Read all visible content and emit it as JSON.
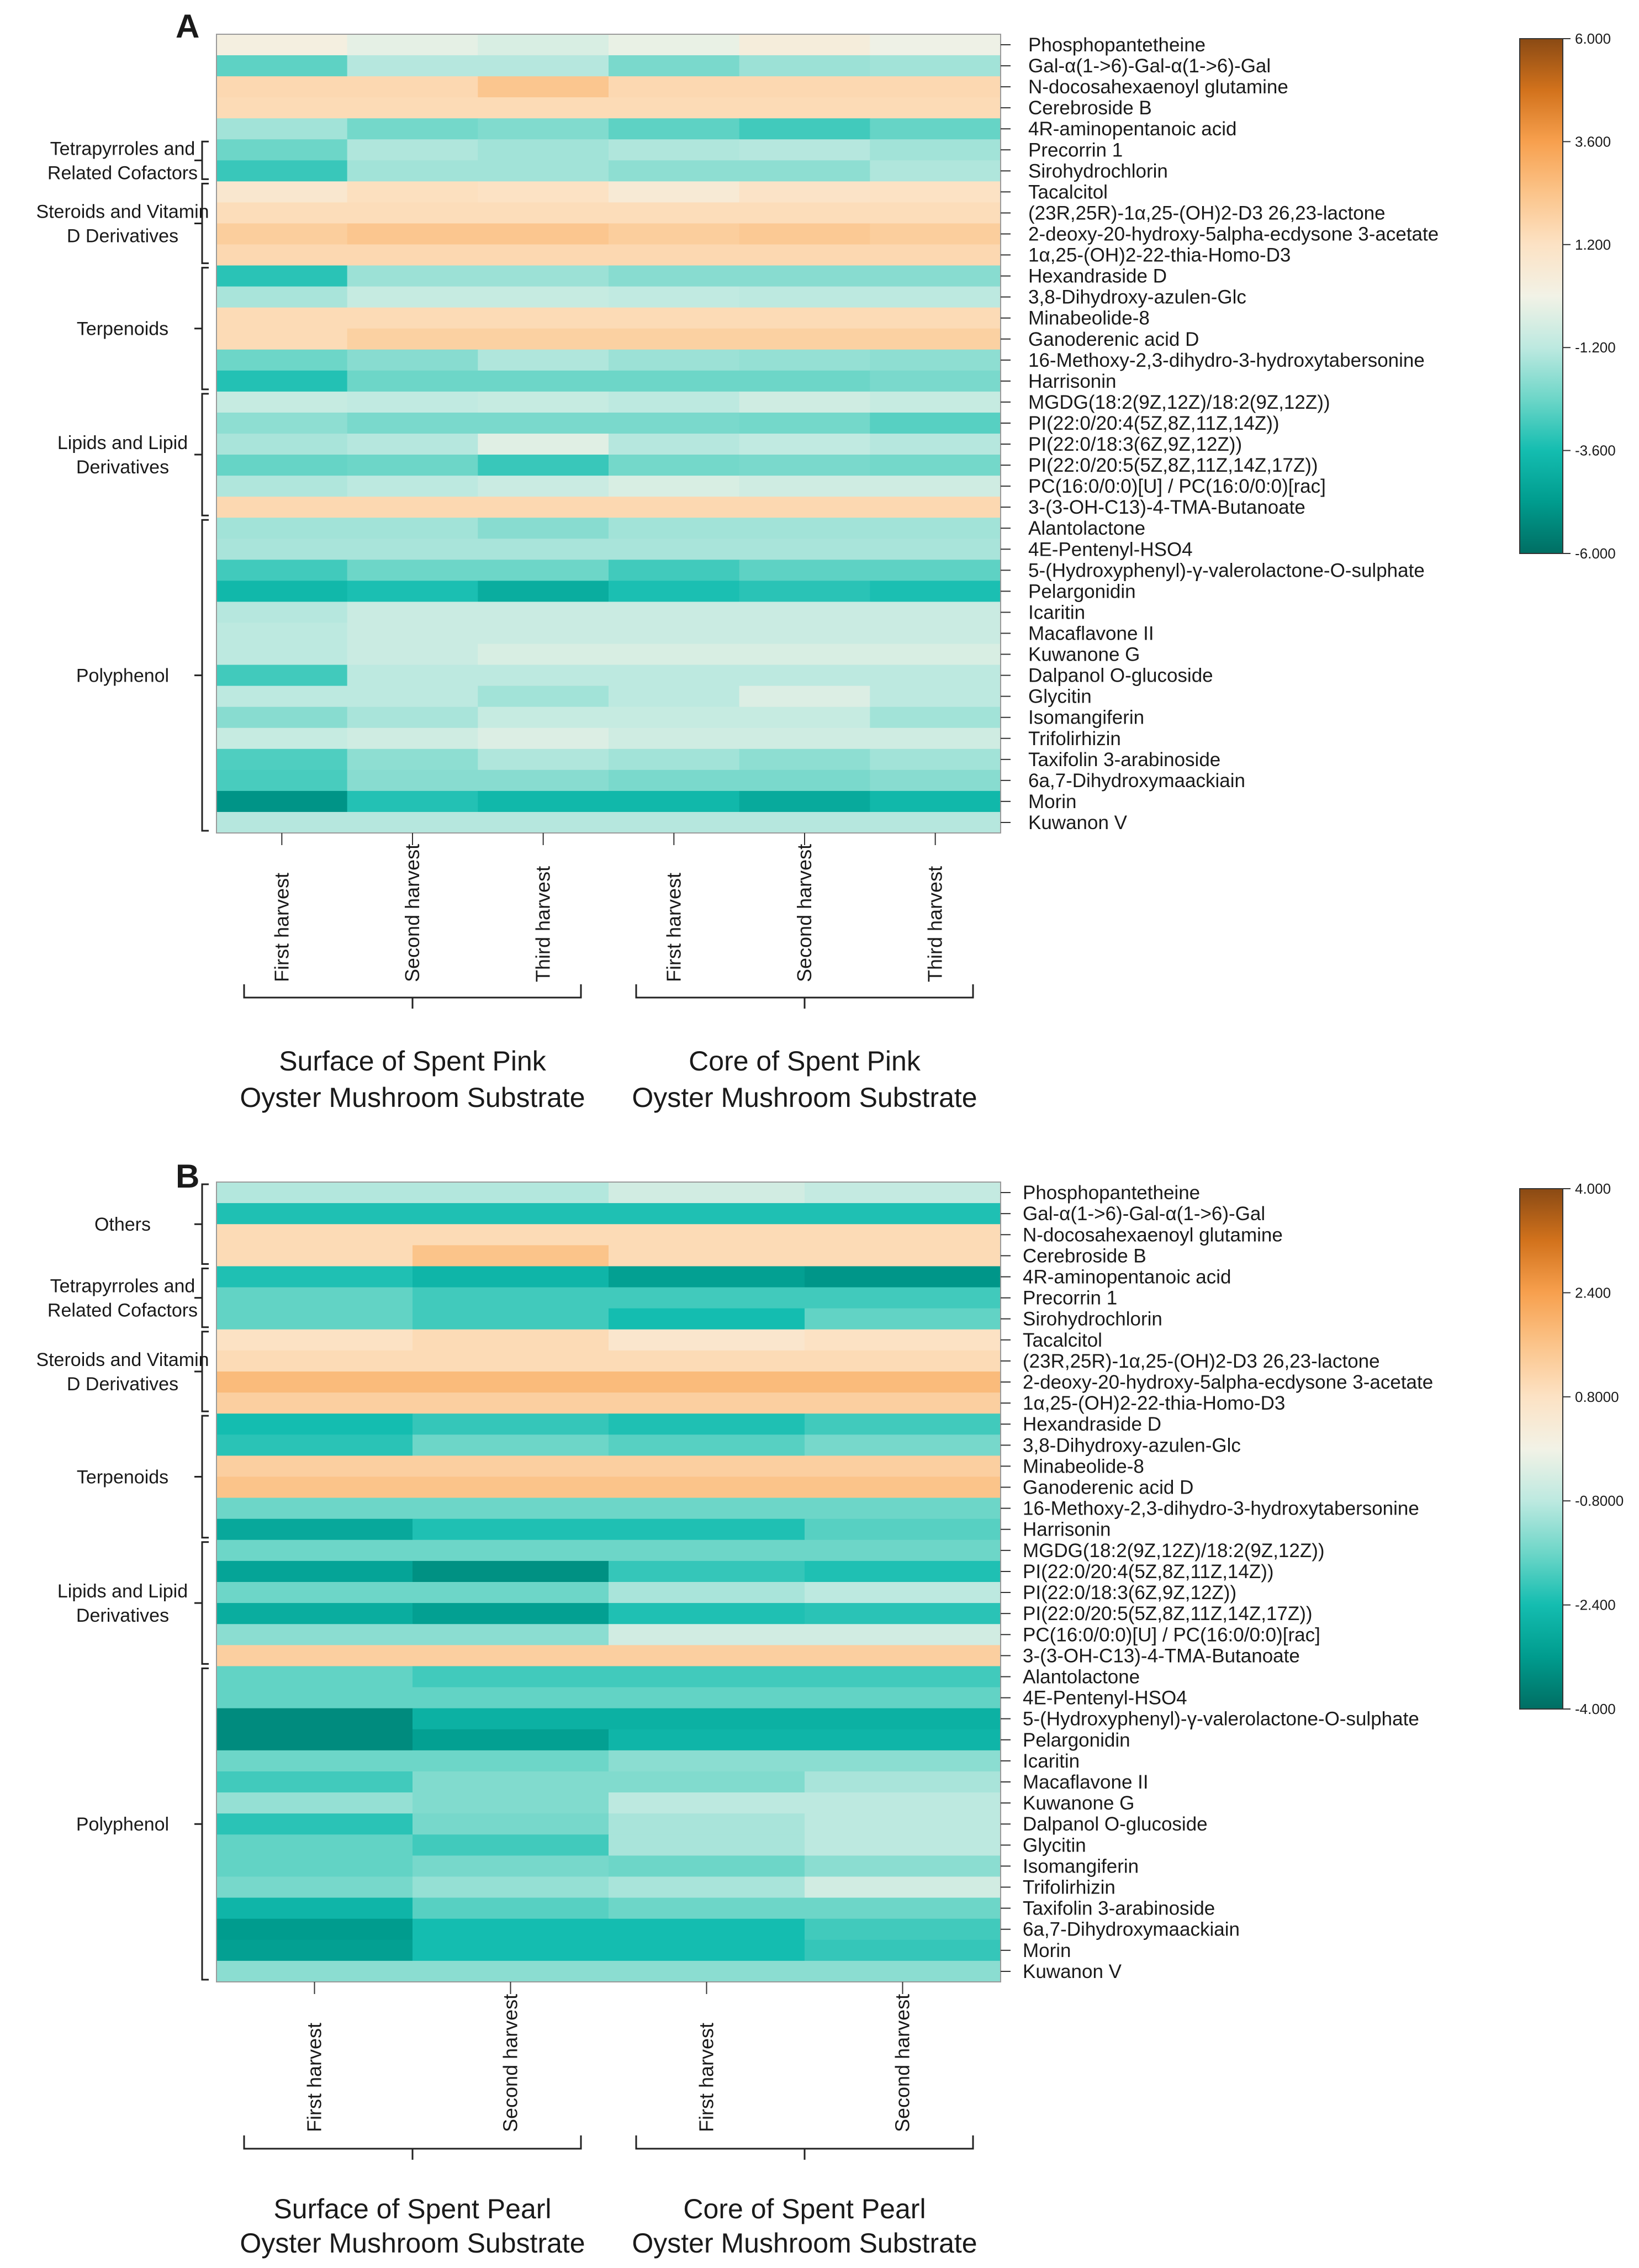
{
  "colors": {
    "scale_stops": [
      "#006e63",
      "#009c8e",
      "#14bdb0",
      "#6dd6c8",
      "#bde9e0",
      "#f2f2e6",
      "#fce2c4",
      "#fbc48a",
      "#f7a04e",
      "#d2721c",
      "#8a4a14"
    ]
  },
  "chart_data": [
    {
      "type": "heatmap",
      "panel_label": "A",
      "rows": [
        "Phosphopantetheine",
        "Gal-α(1->6)-Gal-α(1->6)-Gal",
        "N-docosahexaenoyl glutamine",
        "Cerebroside B",
        "4R-aminopentanoic acid",
        "Precorrin 1",
        "Sirohydrochlorin",
        "Tacalcitol",
        "(23R,25R)-1α,25-(OH)2-D3 26,23-lactone",
        "2-deoxy-20-hydroxy-5alpha-ecdysone 3-acetate",
        "1α,25-(OH)2-22-thia-Homo-D3",
        "Hexandraside D",
        "3,8-Dihydroxy-azulen-Glc",
        "Minabeolide-8",
        "Ganoderenic acid D",
        "16-Methoxy-2,3-dihydro-3-hydroxytabersonine",
        "Harrisonin",
        "MGDG(18:2(9Z,12Z)/18:2(9Z,12Z))",
        "PI(22:0/20:4(5Z,8Z,11Z,14Z))",
        "PI(22:0/18:3(6Z,9Z,12Z))",
        "PI(22:0/20:5(5Z,8Z,11Z,14Z,17Z))",
        "PC(16:0/0:0)[U] / PC(16:0/0:0)[rac]",
        "3-(3-OH-C13)-4-TMA-Butanoate",
        "Alantolactone",
        "4E-Pentenyl-HSO4",
        "5-(Hydroxyphenyl)-γ-valerolactone-O-sulphate",
        "Pelargonidin",
        "Icaritin",
        "Macaflavone II",
        "Kuwanone G",
        "Dalpanol O-glucoside",
        "Glycitin",
        "Isomangiferin",
        "Trifolirhizin",
        "Taxifolin 3-arabinoside",
        "6a,7-Dihydroxymaackiain",
        "Morin",
        "Kuwanon V"
      ],
      "columns": [
        "First harvest",
        "Second harvest",
        "Third harvest",
        "First harvest",
        "Second harvest",
        "Third harvest"
      ],
      "column_groups": [
        {
          "label_line1": "Surface of Spent Pink",
          "label_line2": "Oyster Mushroom Substrate",
          "columns": [
            0,
            1,
            2
          ]
        },
        {
          "label_line1": "Core of Spent Pink",
          "label_line2": "Oyster Mushroom Substrate",
          "columns": [
            3,
            4,
            5
          ]
        }
      ],
      "row_groups": [
        {
          "label": [
            "Tetrapyrroles and",
            "Related Cofactors"
          ],
          "rows": [
            5,
            6
          ]
        },
        {
          "label": [
            "Steroids and Vitamin",
            "D Derivatives"
          ],
          "rows": [
            7,
            10
          ]
        },
        {
          "label": [
            "Terpenoids"
          ],
          "rows": [
            11,
            16
          ]
        },
        {
          "label": [
            "Lipids and Lipid",
            "Derivatives"
          ],
          "rows": [
            17,
            22
          ]
        },
        {
          "label": [
            "Polyphenol"
          ],
          "rows": [
            23,
            37
          ]
        }
      ],
      "values": [
        [
          0.2,
          -0.3,
          -0.6,
          -0.2,
          0.4,
          -0.1
        ],
        [
          -2.6,
          -1.3,
          -1.3,
          -2.2,
          -1.7,
          -1.6
        ],
        [
          1.6,
          1.6,
          2.3,
          1.6,
          1.6,
          1.6
        ],
        [
          1.5,
          1.5,
          1.5,
          1.5,
          1.5,
          1.5
        ],
        [
          -1.6,
          -2.3,
          -2.1,
          -2.6,
          -3.0,
          -2.5
        ],
        [
          -2.4,
          -1.4,
          -1.6,
          -1.4,
          -1.3,
          -1.6
        ],
        [
          -3.1,
          -1.6,
          -1.6,
          -1.9,
          -1.9,
          -1.4
        ],
        [
          0.8,
          1.3,
          1.2,
          0.6,
          1.1,
          1.2
        ],
        [
          1.4,
          1.4,
          1.4,
          1.4,
          1.4,
          1.4
        ],
        [
          2.0,
          2.3,
          2.3,
          2.0,
          2.2,
          2.0
        ],
        [
          1.6,
          1.6,
          1.6,
          1.6,
          1.6,
          1.6
        ],
        [
          -3.3,
          -1.7,
          -1.7,
          -2.0,
          -2.0,
          -2.0
        ],
        [
          -1.5,
          -1.0,
          -1.0,
          -1.1,
          -1.2,
          -1.2
        ],
        [
          1.5,
          1.5,
          1.5,
          1.5,
          1.5,
          1.5
        ],
        [
          1.5,
          1.9,
          1.9,
          1.9,
          1.9,
          1.9
        ],
        [
          -2.4,
          -2.0,
          -1.4,
          -1.7,
          -1.8,
          -1.9
        ],
        [
          -3.4,
          -2.4,
          -2.4,
          -2.4,
          -2.4,
          -2.2
        ],
        [
          -1.0,
          -1.1,
          -1.0,
          -1.2,
          -0.8,
          -1.0
        ],
        [
          -1.9,
          -2.2,
          -2.2,
          -2.2,
          -2.3,
          -2.7
        ],
        [
          -1.5,
          -1.3,
          -0.4,
          -1.3,
          -1.1,
          -1.3
        ],
        [
          -2.5,
          -2.4,
          -3.1,
          -2.3,
          -2.2,
          -2.3
        ],
        [
          -1.4,
          -1.2,
          -0.9,
          -0.6,
          -0.8,
          -0.8
        ],
        [
          1.6,
          1.6,
          1.6,
          1.6,
          1.6,
          1.6
        ],
        [
          -1.6,
          -1.6,
          -2.0,
          -1.6,
          -1.6,
          -1.6
        ],
        [
          -1.5,
          -1.5,
          -1.5,
          -1.5,
          -1.5,
          -1.5
        ],
        [
          -3.0,
          -2.4,
          -2.4,
          -3.0,
          -2.6,
          -2.6
        ],
        [
          -3.8,
          -3.5,
          -4.2,
          -3.5,
          -3.3,
          -3.5
        ],
        [
          -1.3,
          -0.9,
          -0.9,
          -0.9,
          -0.9,
          -0.9
        ],
        [
          -1.2,
          -0.9,
          -0.9,
          -0.9,
          -0.9,
          -0.9
        ],
        [
          -1.2,
          -0.9,
          -0.6,
          -0.6,
          -0.6,
          -0.6
        ],
        [
          -3.0,
          -1.2,
          -1.2,
          -1.2,
          -1.2,
          -1.2
        ],
        [
          -1.2,
          -1.2,
          -1.6,
          -1.2,
          -0.5,
          -1.2
        ],
        [
          -2.0,
          -1.5,
          -1.0,
          -1.0,
          -1.0,
          -1.6
        ],
        [
          -1.0,
          -0.8,
          -0.5,
          -0.8,
          -0.8,
          -0.8
        ],
        [
          -2.8,
          -1.9,
          -1.4,
          -1.6,
          -1.9,
          -1.6
        ],
        [
          -2.9,
          -2.0,
          -2.0,
          -2.2,
          -2.2,
          -2.0
        ],
        [
          -5.0,
          -3.4,
          -3.8,
          -3.8,
          -4.3,
          -3.8
        ],
        [
          -1.3,
          -1.3,
          -1.3,
          -1.3,
          -1.3,
          -1.3
        ]
      ],
      "colorbar": {
        "min": -6,
        "max": 6,
        "ticks": [
          "6.000",
          "3.600",
          "1.200",
          "-1.200",
          "-3.600",
          "-6.000"
        ]
      }
    },
    {
      "type": "heatmap",
      "panel_label": "B",
      "rows": [
        "Phosphopantetheine",
        "Gal-α(1->6)-Gal-α(1->6)-Gal",
        "N-docosahexaenoyl glutamine",
        "Cerebroside B",
        "4R-aminopentanoic acid",
        "Precorrin 1",
        "Sirohydrochlorin",
        "Tacalcitol",
        "(23R,25R)-1α,25-(OH)2-D3 26,23-lactone",
        "2-deoxy-20-hydroxy-5alpha-ecdysone 3-acetate",
        "1α,25-(OH)2-22-thia-Homo-D3",
        "Hexandraside D",
        "3,8-Dihydroxy-azulen-Glc",
        "Minabeolide-8",
        "Ganoderenic acid D",
        "16-Methoxy-2,3-dihydro-3-hydroxytabersonine",
        "Harrisonin",
        "MGDG(18:2(9Z,12Z)/18:2(9Z,12Z))",
        "PI(22:0/20:4(5Z,8Z,11Z,14Z))",
        "PI(22:0/18:3(6Z,9Z,12Z))",
        "PI(22:0/20:5(5Z,8Z,11Z,14Z,17Z))",
        "PC(16:0/0:0)[U] / PC(16:0/0:0)[rac]",
        "3-(3-OH-C13)-4-TMA-Butanoate",
        "Alantolactone",
        "4E-Pentenyl-HSO4",
        "5-(Hydroxyphenyl)-γ-valerolactone-O-sulphate",
        "Pelargonidin",
        "Icaritin",
        "Macaflavone II",
        "Kuwanone G",
        "Dalpanol O-glucoside",
        "Glycitin",
        "Isomangiferin",
        "Trifolirhizin",
        "Taxifolin 3-arabinoside",
        "6a,7-Dihydroxymaackiain",
        "Morin",
        "Kuwanon V"
      ],
      "columns": [
        "First harvest",
        "Second harvest",
        "First harvest",
        "Second harvest"
      ],
      "column_groups": [
        {
          "label_line1": "Surface of Spent Pearl",
          "label_line2": "Oyster Mushroom Substrate",
          "columns": [
            0,
            1
          ]
        },
        {
          "label_line1": "Core of Spent Pearl",
          "label_line2": "Oyster Mushroom Substrate",
          "columns": [
            2,
            3
          ]
        }
      ],
      "row_groups": [
        {
          "label": [
            "Others"
          ],
          "rows": [
            0,
            3
          ]
        },
        {
          "label": [
            "Tetrapyrroles and",
            "Related Cofactors"
          ],
          "rows": [
            4,
            6
          ]
        },
        {
          "label": [
            "Steroids and Vitamin",
            "D Derivatives"
          ],
          "rows": [
            7,
            10
          ]
        },
        {
          "label": [
            "Terpenoids"
          ],
          "rows": [
            11,
            16
          ]
        },
        {
          "label": [
            "Lipids and Lipid",
            "Derivatives"
          ],
          "rows": [
            17,
            22
          ]
        },
        {
          "label": [
            "Polyphenol"
          ],
          "rows": [
            23,
            37
          ]
        }
      ],
      "values": [
        [
          -0.9,
          -0.9,
          -0.5,
          -0.7
        ],
        [
          -2.3,
          -2.3,
          -2.3,
          -2.3
        ],
        [
          1.0,
          1.0,
          1.0,
          1.0
        ],
        [
          1.0,
          1.6,
          1.0,
          1.0
        ],
        [
          -2.3,
          -2.6,
          -3.1,
          -3.3
        ],
        [
          -1.7,
          -2.0,
          -2.0,
          -2.0
        ],
        [
          -1.7,
          -2.0,
          -2.4,
          -1.7
        ],
        [
          0.8,
          1.0,
          0.6,
          0.8
        ],
        [
          1.0,
          1.0,
          1.0,
          1.0
        ],
        [
          1.8,
          1.8,
          1.8,
          1.8
        ],
        [
          1.3,
          1.3,
          1.3,
          1.3
        ],
        [
          -2.4,
          -2.1,
          -2.3,
          -2.0
        ],
        [
          -2.2,
          -1.6,
          -1.8,
          -1.5
        ],
        [
          1.3,
          1.3,
          1.3,
          1.3
        ],
        [
          1.6,
          1.6,
          1.6,
          1.6
        ],
        [
          -1.6,
          -1.6,
          -1.6,
          -1.6
        ],
        [
          -2.9,
          -2.3,
          -2.3,
          -1.8
        ],
        [
          -1.6,
          -1.6,
          -1.6,
          -1.6
        ],
        [
          -3.0,
          -3.4,
          -2.1,
          -2.3
        ],
        [
          -1.6,
          -1.6,
          -1.0,
          -0.8
        ],
        [
          -2.8,
          -3.1,
          -2.3,
          -2.2
        ],
        [
          -1.3,
          -1.3,
          -0.5,
          -0.5
        ],
        [
          1.3,
          1.3,
          1.3,
          1.3
        ],
        [
          -1.7,
          -2.0,
          -2.0,
          -2.0
        ],
        [
          -1.7,
          -1.7,
          -1.7,
          -1.7
        ],
        [
          -3.5,
          -2.7,
          -2.7,
          -2.7
        ],
        [
          -3.5,
          -3.1,
          -2.6,
          -2.6
        ],
        [
          -1.6,
          -1.6,
          -1.3,
          -1.3
        ],
        [
          -2.0,
          -1.4,
          -1.4,
          -1.0
        ],
        [
          -1.2,
          -1.4,
          -0.8,
          -0.8
        ],
        [
          -2.2,
          -1.5,
          -1.0,
          -0.8
        ],
        [
          -1.7,
          -2.0,
          -1.0,
          -0.8
        ],
        [
          -1.7,
          -1.5,
          -1.6,
          -1.3
        ],
        [
          -1.5,
          -1.2,
          -1.0,
          -0.5
        ],
        [
          -2.6,
          -1.8,
          -1.6,
          -1.6
        ],
        [
          -3.2,
          -2.4,
          -2.4,
          -2.0
        ],
        [
          -3.1,
          -2.4,
          -2.4,
          -2.1
        ],
        [
          -1.3,
          -1.3,
          -1.3,
          -1.3
        ]
      ],
      "colorbar": {
        "min": -4,
        "max": 4,
        "ticks": [
          "4.000",
          "2.400",
          "0.8000",
          "-0.8000",
          "-2.400",
          "-4.000"
        ]
      }
    }
  ]
}
